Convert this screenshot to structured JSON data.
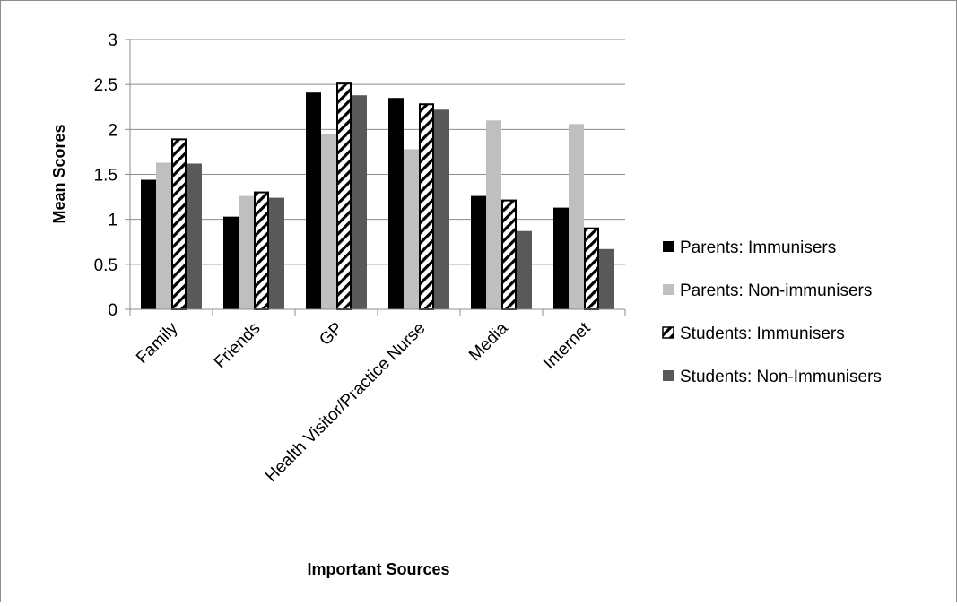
{
  "chart_data": {
    "type": "bar",
    "title": "",
    "xlabel": "Important Sources",
    "ylabel": "Mean Scores",
    "ylim": [
      0,
      3
    ],
    "yticks": [
      "0",
      "0.5",
      "1",
      "1.5",
      "2",
      "2.5",
      "3"
    ],
    "grid": true,
    "legend_position": "right",
    "categories": [
      "Family",
      "Friends",
      "GP",
      "Health Visitor/Practice Nurse",
      "Media",
      "Internet"
    ],
    "series": [
      {
        "name": "Parents: Immunisers",
        "color": "#000000",
        "pattern": "solid",
        "values": [
          1.44,
          1.03,
          2.41,
          2.35,
          1.26,
          1.13
        ]
      },
      {
        "name": "Parents: Non-immunisers",
        "color": "#bfbfbf",
        "pattern": "solid",
        "values": [
          1.63,
          1.26,
          1.95,
          1.78,
          2.1,
          2.06
        ]
      },
      {
        "name": "Students: Immunisers",
        "color": "#000000",
        "pattern": "diagonal-hatch",
        "values": [
          1.9,
          1.31,
          2.52,
          2.29,
          1.22,
          0.91
        ]
      },
      {
        "name": "Students: Non-Immunisers",
        "color": "#595959",
        "pattern": "solid",
        "values": [
          1.62,
          1.24,
          2.38,
          2.22,
          0.87,
          0.67
        ]
      }
    ]
  }
}
